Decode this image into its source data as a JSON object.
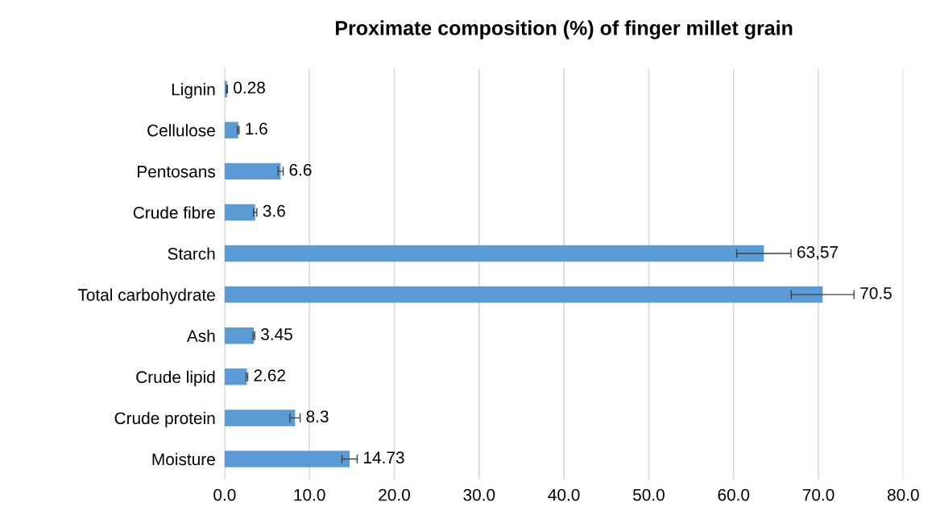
{
  "chart_data": {
    "type": "bar",
    "orientation": "horizontal",
    "title": "Proximate composition (%) of finger millet grain",
    "categories": [
      "Lignin",
      "Cellulose",
      "Pentosans",
      "Crude fibre",
      "Starch",
      "Total carbohydrate",
      "Ash",
      "Crude lipid",
      "Crude protein",
      "Moisture"
    ],
    "values": [
      0.28,
      1.6,
      6.6,
      3.6,
      63.57,
      70.5,
      3.45,
      2.62,
      8.3,
      14.73
    ],
    "errors": [
      0.05,
      0.1,
      0.3,
      0.2,
      3.2,
      3.7,
      0.1,
      0.1,
      0.6,
      0.9
    ],
    "value_labels": [
      "0.28",
      "1.6",
      "6.6",
      "3.6",
      "63,57",
      "70.5",
      "3.45",
      "2.62",
      "8.3",
      "14.73"
    ],
    "color": "#5b9bd5",
    "xlim": [
      0,
      80
    ],
    "xticks": [
      {
        "value": 0,
        "label": "0.0"
      },
      {
        "value": 10,
        "label": "10.0"
      },
      {
        "value": 20,
        "label": "20.0"
      },
      {
        "value": 30,
        "label": "30.0"
      },
      {
        "value": 40,
        "label": "40.0"
      },
      {
        "value": 50,
        "label": "50.0"
      },
      {
        "value": 60,
        "label": "60.0"
      },
      {
        "value": 70,
        "label": "70.0"
      },
      {
        "value": 80,
        "label": "80.0"
      }
    ],
    "grid": "x"
  }
}
